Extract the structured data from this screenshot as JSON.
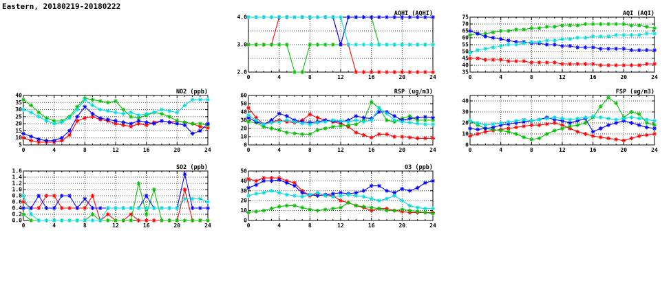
{
  "page": {
    "title": "Eastern, 20180219-20180222"
  },
  "colors": {
    "red": "#ff0000",
    "green": "#00c000",
    "blue": "#0000ff",
    "cyan": "#00dddd"
  },
  "chart_data": [
    {
      "id": "aqhi",
      "type": "line",
      "title": "AQHI (AQHI)",
      "xlim": [
        0,
        24
      ],
      "xticks": [
        0,
        4,
        8,
        12,
        16,
        20,
        24
      ],
      "x_start": 0,
      "x_step": 1,
      "ylim": [
        2,
        4
      ],
      "yticks": [
        2.0,
        3.0,
        4.0
      ],
      "ytick_labels": [
        "2.0",
        "3.0",
        "4.0"
      ],
      "ygrid": [
        2.5,
        3.0,
        3.5
      ],
      "grid": true,
      "legend": "none",
      "series": [
        {
          "name": "station-red",
          "color": "red",
          "values": [
            3,
            3,
            3,
            3,
            4,
            4,
            4,
            4,
            4,
            4,
            4,
            4,
            3,
            3,
            2,
            2,
            2,
            2,
            2,
            2,
            2,
            2,
            2,
            2,
            2
          ]
        },
        {
          "name": "station-green",
          "color": "green",
          "values": [
            3,
            3,
            3,
            3,
            3,
            3,
            2,
            2,
            3,
            3,
            3,
            3,
            3,
            4,
            4,
            4,
            4,
            3,
            3,
            3,
            3,
            3,
            3,
            3,
            3
          ]
        },
        {
          "name": "station-blue",
          "color": "blue",
          "values": [
            4,
            4,
            4,
            4,
            4,
            4,
            4,
            4,
            4,
            4,
            4,
            4,
            3,
            4,
            4,
            4,
            4,
            4,
            4,
            4,
            4,
            4,
            4,
            4,
            4
          ]
        },
        {
          "name": "station-cyan",
          "color": "cyan",
          "values": [
            4,
            4,
            4,
            4,
            4,
            4,
            4,
            4,
            4,
            4,
            4,
            4,
            4,
            3,
            3,
            3,
            3,
            3,
            3,
            3,
            3,
            3,
            3,
            3,
            3
          ]
        }
      ]
    },
    {
      "id": "aqi",
      "type": "line",
      "title": "AQI (AQI)",
      "xlim": [
        0,
        24
      ],
      "xticks": [
        0,
        4,
        8,
        12,
        16,
        20,
        24
      ],
      "x_start": 0,
      "x_step": 1,
      "ylim": [
        35,
        75
      ],
      "yticks": [
        35,
        40,
        45,
        50,
        55,
        60,
        65,
        70,
        75
      ],
      "ytick_labels": [
        "35",
        "40",
        "45",
        "50",
        "55",
        "60",
        "65",
        "70",
        "75"
      ],
      "ygrid": [
        40,
        45,
        50,
        55,
        60,
        65,
        70
      ],
      "grid": true,
      "legend": "none",
      "series": [
        {
          "name": "station-red",
          "color": "red",
          "values": [
            45,
            45,
            44,
            44,
            44,
            43,
            43,
            43,
            42,
            42,
            42,
            42,
            41,
            41,
            41,
            41,
            41,
            40,
            40,
            40,
            40,
            40,
            40,
            41,
            41
          ]
        },
        {
          "name": "station-green",
          "color": "green",
          "values": [
            62,
            63,
            63,
            64,
            65,
            65,
            66,
            66,
            67,
            67,
            68,
            68,
            69,
            69,
            69,
            70,
            70,
            70,
            70,
            70,
            70,
            69,
            69,
            68,
            67
          ]
        },
        {
          "name": "station-blue",
          "color": "blue",
          "values": [
            65,
            63,
            61,
            60,
            59,
            58,
            57,
            57,
            56,
            56,
            55,
            55,
            54,
            54,
            53,
            53,
            53,
            52,
            52,
            52,
            52,
            51,
            51,
            51,
            51
          ]
        },
        {
          "name": "station-cyan",
          "color": "cyan",
          "values": [
            49,
            51,
            52,
            53,
            54,
            55,
            55,
            56,
            57,
            57,
            58,
            58,
            59,
            59,
            60,
            60,
            61,
            61,
            61,
            62,
            62,
            62,
            62,
            63,
            63
          ]
        }
      ]
    },
    {
      "id": "no2",
      "type": "line",
      "title": "NO2 (ppb)",
      "xlim": [
        0,
        24
      ],
      "xticks": [
        0,
        4,
        8,
        12,
        16,
        20,
        24
      ],
      "x_start": 0,
      "x_step": 1,
      "ylim": [
        5,
        40
      ],
      "yticks": [
        5,
        10,
        15,
        20,
        25,
        30,
        35,
        40
      ],
      "ytick_labels": [
        "5",
        "10",
        "15",
        "20",
        "25",
        "30",
        "35",
        "40"
      ],
      "ygrid": [
        10,
        15,
        20,
        25,
        30,
        35
      ],
      "grid": true,
      "legend": "none",
      "series": [
        {
          "name": "station-red",
          "color": "red",
          "values": [
            10,
            8,
            7,
            7,
            7,
            8,
            12,
            22,
            24,
            25,
            23,
            22,
            20,
            19,
            18,
            20,
            19,
            21,
            22,
            21,
            22,
            21,
            20,
            18,
            17
          ]
        },
        {
          "name": "station-green",
          "color": "green",
          "values": [
            37,
            33,
            28,
            24,
            22,
            22,
            25,
            32,
            38,
            37,
            36,
            35,
            36,
            30,
            25,
            24,
            26,
            28,
            27,
            25,
            22,
            21,
            20,
            20,
            19
          ]
        },
        {
          "name": "station-blue",
          "color": "blue",
          "values": [
            13,
            11,
            9,
            8,
            8,
            10,
            15,
            25,
            32,
            27,
            24,
            23,
            22,
            21,
            20,
            22,
            21,
            20,
            22,
            21,
            20,
            19,
            13,
            15,
            20
          ]
        },
        {
          "name": "station-cyan",
          "color": "cyan",
          "values": [
            30,
            28,
            25,
            22,
            20,
            21,
            24,
            30,
            37,
            33,
            30,
            29,
            28,
            27,
            28,
            26,
            27,
            28,
            30,
            29,
            28,
            33,
            37,
            37,
            37
          ]
        }
      ]
    },
    {
      "id": "rsp",
      "type": "line",
      "title": "RSP (ug/m3)",
      "xlim": [
        0,
        24
      ],
      "xticks": [
        0,
        4,
        8,
        12,
        16,
        20,
        24
      ],
      "x_start": 0,
      "x_step": 1,
      "ylim": [
        0,
        60
      ],
      "yticks": [
        0,
        10,
        20,
        30,
        40,
        50,
        60
      ],
      "ytick_labels": [
        "0",
        "10",
        "20",
        "30",
        "40",
        "50",
        "60"
      ],
      "ygrid": [
        10,
        20,
        30,
        40,
        50
      ],
      "grid": true,
      "legend": "none",
      "series": [
        {
          "name": "station-red",
          "color": "red",
          "values": [
            45,
            33,
            25,
            28,
            30,
            28,
            27,
            30,
            37,
            33,
            30,
            28,
            26,
            22,
            15,
            12,
            9,
            13,
            13,
            10,
            10,
            9,
            8,
            8,
            8
          ]
        },
        {
          "name": "station-green",
          "color": "green",
          "values": [
            28,
            27,
            22,
            20,
            18,
            15,
            14,
            13,
            13,
            18,
            20,
            22,
            23,
            24,
            25,
            30,
            52,
            45,
            30,
            28,
            32,
            35,
            30,
            30,
            30
          ]
        },
        {
          "name": "station-blue",
          "color": "blue",
          "values": [
            33,
            28,
            25,
            30,
            38,
            35,
            30,
            28,
            27,
            28,
            30,
            29,
            28,
            30,
            35,
            33,
            32,
            40,
            40,
            35,
            30,
            32,
            33,
            34,
            33
          ]
        },
        {
          "name": "station-cyan",
          "color": "cyan",
          "values": [
            36,
            30,
            25,
            27,
            28,
            30,
            28,
            26,
            25,
            27,
            28,
            30,
            29,
            28,
            30,
            28,
            30,
            45,
            38,
            30,
            28,
            27,
            26,
            25,
            25
          ]
        }
      ]
    },
    {
      "id": "fsp",
      "type": "line",
      "title": "FSP (ug/m3)",
      "xlim": [
        0,
        24
      ],
      "xticks": [
        0,
        4,
        8,
        12,
        16,
        20,
        24
      ],
      "x_start": 0,
      "x_step": 1,
      "ylim": [
        0,
        45
      ],
      "yticks": [
        0,
        10,
        20,
        30,
        40
      ],
      "ytick_labels": [
        "0",
        "10",
        "20",
        "30",
        "40"
      ],
      "ygrid": [
        10,
        20,
        30,
        40
      ],
      "grid": true,
      "legend": "none",
      "series": [
        {
          "name": "station-red",
          "color": "red",
          "values": [
            8,
            10,
            12,
            13,
            14,
            15,
            16,
            17,
            18,
            18,
            19,
            20,
            18,
            15,
            12,
            10,
            8,
            7,
            6,
            5,
            4,
            6,
            8,
            9,
            10
          ]
        },
        {
          "name": "station-green",
          "color": "green",
          "values": [
            22,
            18,
            15,
            14,
            13,
            12,
            10,
            7,
            5,
            6,
            10,
            13,
            15,
            17,
            18,
            20,
            25,
            35,
            43,
            38,
            25,
            30,
            28,
            20,
            18
          ]
        },
        {
          "name": "station-blue",
          "color": "blue",
          "values": [
            15,
            14,
            15,
            16,
            18,
            19,
            20,
            21,
            22,
            23,
            25,
            23,
            22,
            20,
            22,
            24,
            12,
            15,
            18,
            20,
            22,
            20,
            18,
            16,
            15
          ]
        },
        {
          "name": "station-cyan",
          "color": "cyan",
          "values": [
            22,
            20,
            18,
            19,
            20,
            21,
            22,
            23,
            22,
            23,
            24,
            25,
            24,
            23,
            24,
            25,
            26,
            25,
            24,
            23,
            24,
            25,
            24,
            23,
            22
          ]
        }
      ]
    },
    {
      "id": "so2",
      "type": "line",
      "title": "SO2 (ppb)",
      "xlim": [
        0,
        24
      ],
      "xticks": [
        0,
        4,
        8,
        12,
        16,
        20,
        24
      ],
      "x_start": 0,
      "x_step": 1,
      "ylim": [
        0,
        1.6
      ],
      "yticks": [
        0.0,
        0.2,
        0.4,
        0.6,
        0.8,
        1.0,
        1.2,
        1.4,
        1.6
      ],
      "ytick_labels": [
        "0.0",
        "0.2",
        "0.4",
        "0.6",
        "0.8",
        "1.0",
        "1.2",
        "1.4",
        "1.6"
      ],
      "ygrid": [
        0.2,
        0.4,
        0.6,
        0.8,
        1.0,
        1.2,
        1.4
      ],
      "grid": true,
      "legend": "none",
      "series": [
        {
          "name": "station-red",
          "color": "red",
          "values": [
            0.6,
            0.4,
            0.4,
            0.8,
            0.8,
            0.4,
            0.4,
            0.4,
            0.4,
            0.8,
            0.0,
            0.2,
            0.0,
            0.0,
            0.2,
            0.0,
            0.0,
            0.0,
            0.0,
            0.0,
            0.0,
            1.0,
            0.0,
            0.0,
            0.0
          ]
        },
        {
          "name": "station-green",
          "color": "green",
          "values": [
            0.2,
            0.0,
            0.0,
            0.0,
            0.0,
            0.0,
            0.0,
            0.0,
            0.0,
            0.2,
            0.0,
            0.0,
            0.0,
            0.0,
            0.0,
            1.2,
            0.2,
            1.0,
            0.0,
            0.0,
            0.0,
            0.0,
            0.0,
            0.0,
            0.0
          ]
        },
        {
          "name": "station-blue",
          "color": "blue",
          "values": [
            0.4,
            0.4,
            0.8,
            0.4,
            0.4,
            0.8,
            0.8,
            0.4,
            0.7,
            0.4,
            0.4,
            0.4,
            0.4,
            0.4,
            0.4,
            0.4,
            0.8,
            0.4,
            0.4,
            0.4,
            0.4,
            1.5,
            0.4,
            0.4,
            0.4
          ]
        },
        {
          "name": "station-cyan",
          "color": "cyan",
          "values": [
            0.8,
            0.2,
            0.0,
            0.0,
            0.0,
            0.0,
            0.0,
            0.0,
            0.0,
            0.0,
            0.0,
            0.4,
            0.4,
            0.4,
            0.4,
            0.4,
            0.4,
            0.4,
            0.4,
            0.4,
            0.4,
            0.7,
            0.7,
            0.7,
            0.6
          ]
        }
      ]
    },
    {
      "id": "o3",
      "type": "line",
      "title": "O3 (ppb)",
      "xlim": [
        0,
        24
      ],
      "xticks": [
        0,
        4,
        8,
        12,
        16,
        20,
        24
      ],
      "x_start": 0,
      "x_step": 1,
      "ylim": [
        0,
        50
      ],
      "yticks": [
        0,
        10,
        20,
        30,
        40,
        50
      ],
      "ytick_labels": [
        "0",
        "10",
        "20",
        "30",
        "40",
        "50"
      ],
      "ygrid": [
        10,
        20,
        30,
        40
      ],
      "grid": true,
      "legend": "none",
      "series": [
        {
          "name": "station-red",
          "color": "red",
          "values": [
            42,
            40,
            43,
            43,
            43,
            40,
            38,
            30,
            25,
            27,
            26,
            25,
            20,
            18,
            15,
            13,
            10,
            12,
            12,
            10,
            9,
            8,
            8,
            8,
            8
          ]
        },
        {
          "name": "station-green",
          "color": "green",
          "values": [
            8,
            9,
            10,
            12,
            14,
            15,
            15,
            13,
            11,
            10,
            11,
            12,
            13,
            18,
            15,
            14,
            13,
            12,
            10,
            10,
            11,
            10,
            9,
            8,
            7
          ]
        },
        {
          "name": "station-blue",
          "color": "blue",
          "values": [
            33,
            36,
            40,
            40,
            41,
            38,
            35,
            28,
            26,
            25,
            26,
            27,
            28,
            27,
            28,
            30,
            35,
            35,
            30,
            28,
            32,
            30,
            33,
            38,
            40
          ]
        },
        {
          "name": "station-cyan",
          "color": "cyan",
          "values": [
            25,
            27,
            28,
            30,
            28,
            26,
            25,
            24,
            26,
            28,
            25,
            24,
            25,
            26,
            25,
            24,
            22,
            20,
            22,
            25,
            20,
            15,
            13,
            12,
            12
          ]
        }
      ]
    }
  ]
}
